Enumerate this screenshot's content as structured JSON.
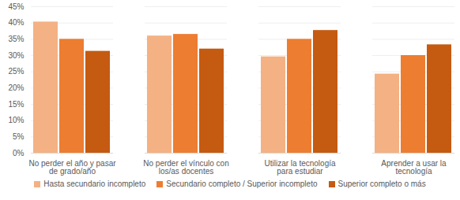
{
  "chart_data": {
    "type": "bar",
    "categories": [
      "No perder el año y pasar de grado/año",
      "No perder el vínculo con los/as docentes",
      "Utilizar la tecnología para estudiar",
      "Aprender a usar la tecnología"
    ],
    "series": [
      {
        "name": "Hasta secundario incompleto",
        "color": "#f4b183",
        "values": [
          40.3,
          36.0,
          29.6,
          24.3
        ]
      },
      {
        "name": "Secundario completo / Superior incompleto",
        "color": "#ed7d31",
        "values": [
          35.0,
          36.5,
          35.0,
          30.0
        ]
      },
      {
        "name": "Superior completo o más",
        "color": "#c55a11",
        "values": [
          31.3,
          32.0,
          37.7,
          33.3
        ]
      }
    ],
    "ylim": [
      0,
      45
    ],
    "yticks": [
      {
        "value": 0,
        "label": "0%"
      },
      {
        "value": 5,
        "label": "5%"
      },
      {
        "value": 10,
        "label": "10%"
      },
      {
        "value": 15,
        "label": "15%"
      },
      {
        "value": 20,
        "label": "20%"
      },
      {
        "value": 25,
        "label": "25%"
      },
      {
        "value": 30,
        "label": "30%"
      },
      {
        "value": 35,
        "label": "35%"
      },
      {
        "value": 40,
        "label": "40%"
      },
      {
        "value": 45,
        "label": "45%"
      }
    ],
    "grid": true,
    "legend": "bottom"
  }
}
